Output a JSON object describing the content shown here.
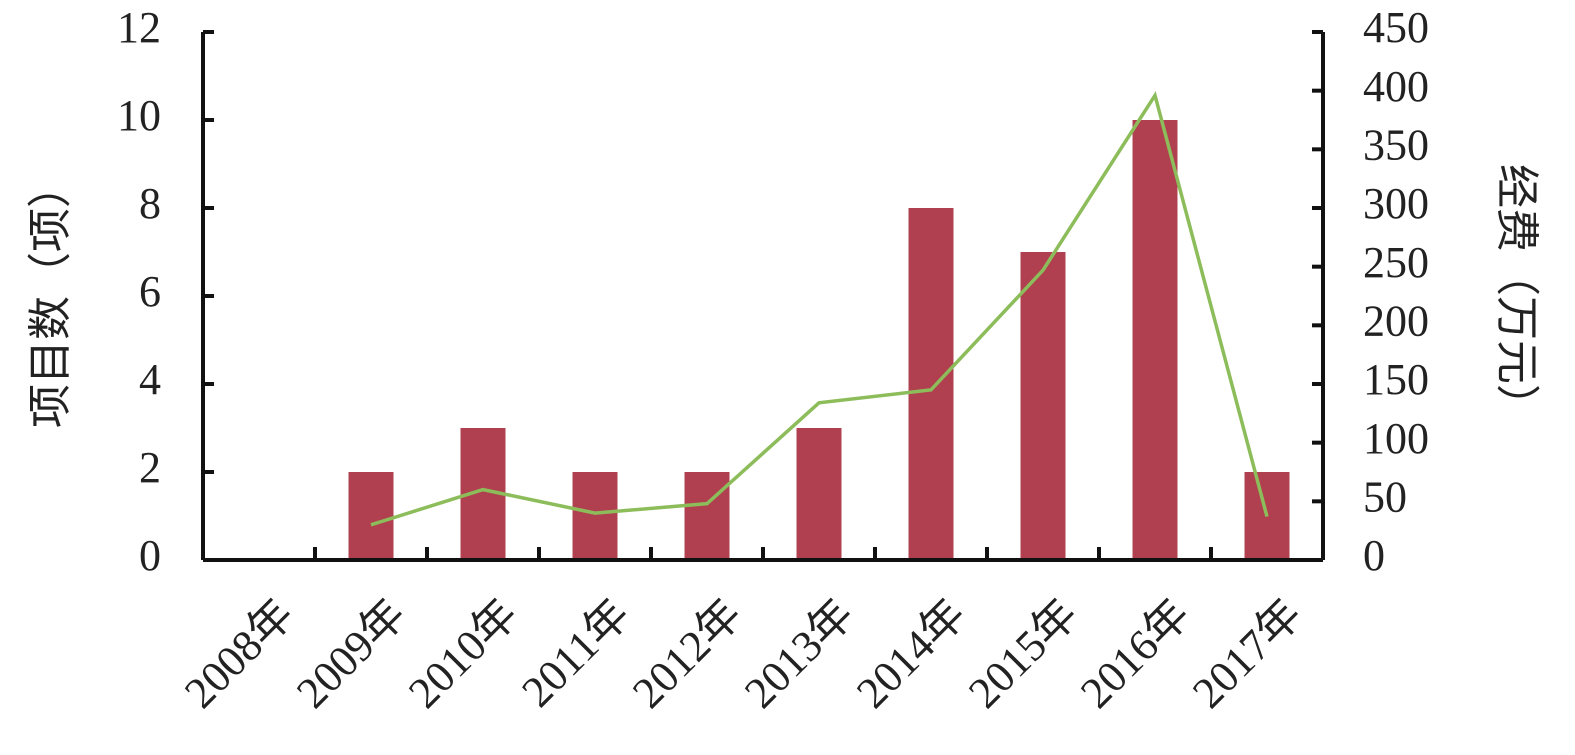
{
  "chart_data": {
    "type": "bar",
    "categories": [
      "2008年",
      "2009年",
      "2010年",
      "2011年",
      "2012年",
      "2013年",
      "2014年",
      "2015年",
      "2016年",
      "2017年"
    ],
    "series": [
      {
        "name": "项目数",
        "type": "bar",
        "color": "#b0404f",
        "values": [
          0,
          2,
          3,
          2,
          2,
          3,
          8,
          7,
          10,
          2
        ]
      },
      {
        "name": "经费",
        "type": "line",
        "axis": "y2",
        "color": "#8cbd5a",
        "values": [
          null,
          30,
          60,
          40,
          48,
          134,
          145,
          247,
          396,
          37
        ]
      }
    ],
    "y_label": "项目数（项）",
    "y2_label": "经费（万元）",
    "ylim": [
      0,
      12
    ],
    "yticks": [
      0,
      2,
      4,
      6,
      8,
      10,
      12
    ],
    "y2lim": [
      0,
      450
    ],
    "y2ticks": [
      0,
      50,
      100,
      150,
      200,
      250,
      300,
      350,
      400,
      450
    ]
  }
}
